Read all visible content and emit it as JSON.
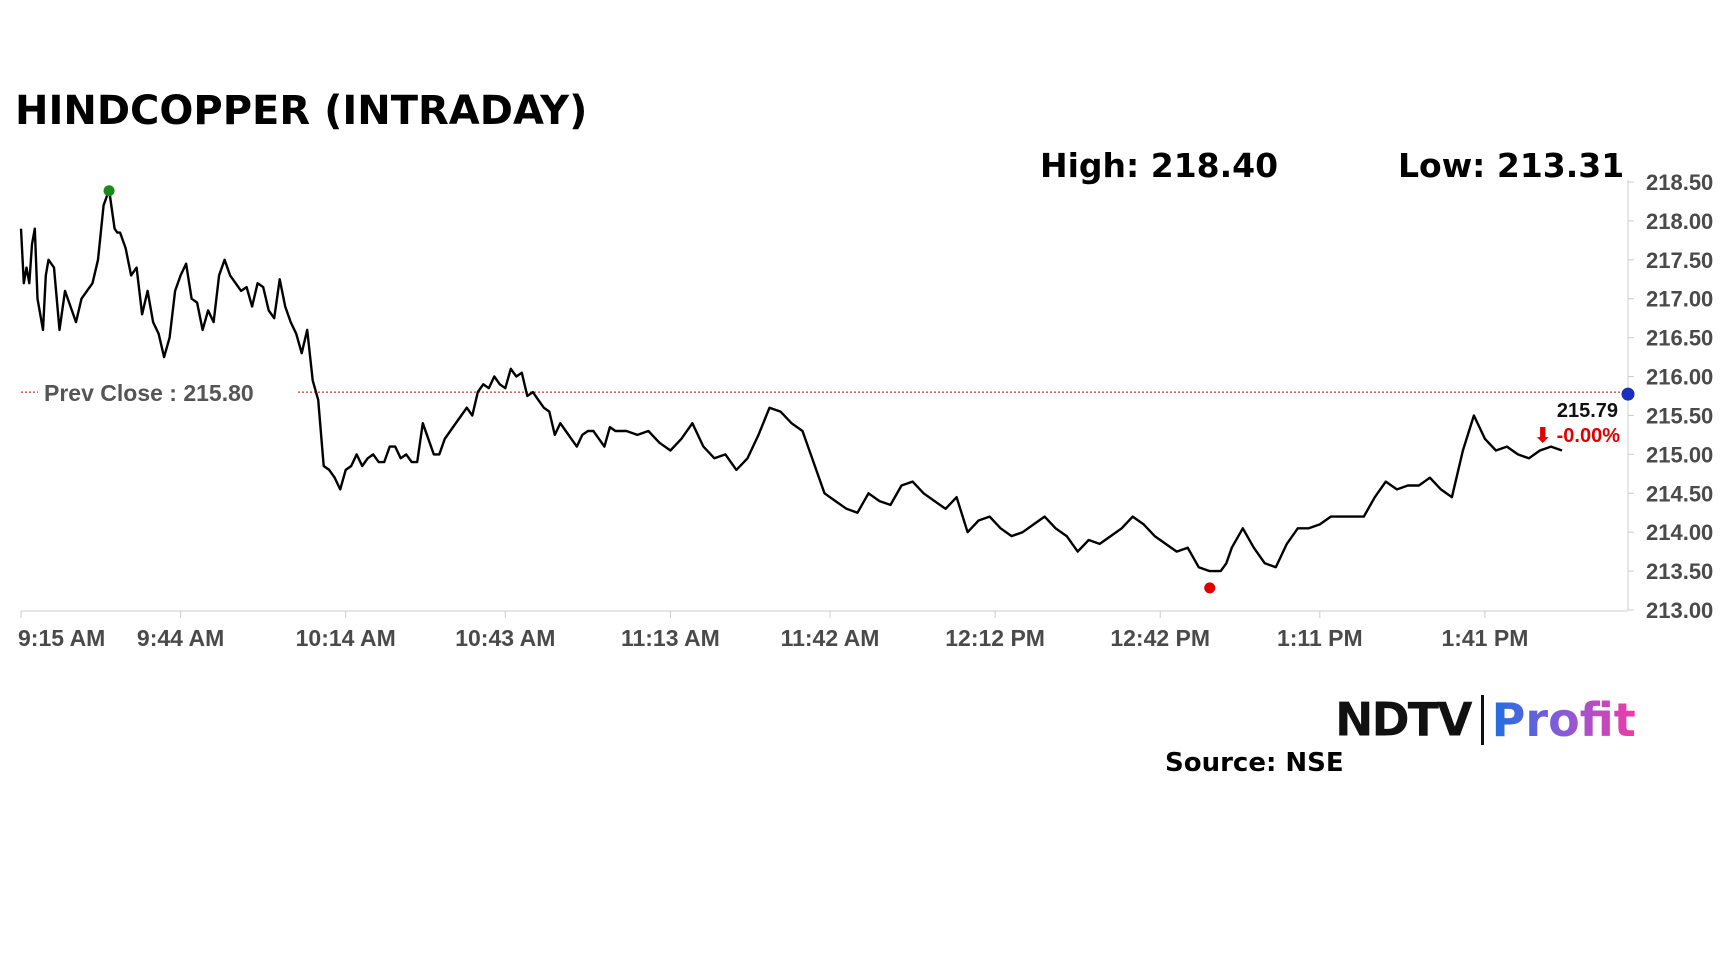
{
  "header": {
    "title": "HINDCOPPER (INTRADAY)",
    "high_label": "High: 218.40",
    "low_label": "Low: 213.31"
  },
  "footer": {
    "logo_primary": "NDTV",
    "logo_secondary": "Profit",
    "source": "Source: NSE"
  },
  "chart_data": {
    "type": "line",
    "title": "HINDCOPPER (INTRADAY)",
    "ylim": [
      213.0,
      218.5
    ],
    "yticks": [
      "218.50",
      "218.00",
      "217.50",
      "217.00",
      "216.50",
      "216.00",
      "215.50",
      "215.00",
      "214.50",
      "214.00",
      "213.50",
      "213.00"
    ],
    "yticks_values": [
      218.5,
      218.0,
      217.5,
      217.0,
      216.5,
      216.0,
      215.5,
      215.0,
      214.5,
      214.0,
      213.5,
      213.0
    ],
    "xticks": [
      "9:15 AM",
      "9:44 AM",
      "10:14 AM",
      "10:43 AM",
      "11:13 AM",
      "11:42 AM",
      "12:12 PM",
      "12:42 PM",
      "1:11 PM",
      "1:41 PM"
    ],
    "xticks_minutes": [
      0,
      29,
      59,
      88,
      118,
      147,
      177,
      207,
      236,
      266
    ],
    "x_range_minutes": [
      0,
      292
    ],
    "high": 218.4,
    "low": 213.31,
    "prev_close": 215.8,
    "prev_close_label": "Prev Close : 215.80",
    "last_price_label": "215.79",
    "change_label": "⬇ -0.00%",
    "colors": {
      "line": "#000000",
      "high_marker": "#1a8a1a",
      "low_marker": "#e00000",
      "last_marker": "#1a2fbf",
      "prev_close_line": "#c00000",
      "change": "#e00000",
      "axis": "#cccccc"
    },
    "series": [
      {
        "x": [
          0,
          0.5,
          1,
          1.5,
          2,
          2.5,
          3,
          4,
          4.5,
          5,
          6,
          7,
          8,
          9,
          10,
          11,
          12,
          13,
          14,
          15,
          16,
          17,
          17.5,
          18,
          19,
          20,
          21,
          22,
          23,
          24,
          25,
          26,
          27,
          28,
          29,
          30,
          31,
          32,
          33,
          34,
          35,
          36,
          37,
          38,
          39,
          40,
          41,
          42,
          43,
          44,
          45,
          46,
          47,
          48,
          49,
          50,
          51,
          52,
          53,
          54,
          55,
          56,
          57,
          58,
          59,
          60,
          61,
          62,
          63,
          64,
          65,
          66,
          67,
          68,
          69,
          70,
          71,
          72,
          73,
          74,
          75,
          76,
          77,
          78,
          79,
          80,
          81,
          82,
          83,
          84,
          85,
          86,
          87,
          88,
          89,
          90,
          91,
          92,
          93,
          94,
          95,
          96,
          97,
          98,
          99,
          100,
          101,
          102,
          103,
          104,
          105,
          106,
          107,
          108,
          110,
          112,
          114,
          116,
          118,
          120,
          122,
          124,
          126,
          128,
          130,
          132,
          134,
          136,
          138,
          140,
          142,
          144,
          146,
          148,
          150,
          152,
          154,
          156,
          158,
          160,
          162,
          164,
          166,
          168,
          170,
          172,
          174,
          176,
          178,
          180,
          182,
          184,
          186,
          188,
          190,
          192,
          194,
          196,
          198,
          200,
          202,
          204,
          206,
          208,
          210,
          212,
          214,
          216,
          218,
          219,
          220,
          222,
          224,
          226,
          228,
          230,
          232,
          234,
          236,
          238,
          240,
          242,
          244,
          246,
          248,
          250,
          252,
          254,
          256,
          258,
          260,
          262,
          264,
          266,
          268,
          270,
          272,
          274,
          276,
          278,
          280
        ],
        "values": [
          217.9,
          217.2,
          217.4,
          217.2,
          217.7,
          217.9,
          217.0,
          216.6,
          217.3,
          217.5,
          217.4,
          216.6,
          217.1,
          216.9,
          216.7,
          217.0,
          217.1,
          217.2,
          217.5,
          218.2,
          218.4,
          217.9,
          217.85,
          217.85,
          217.65,
          217.3,
          217.4,
          216.8,
          217.1,
          216.7,
          216.55,
          216.25,
          216.5,
          217.1,
          217.3,
          217.45,
          217.0,
          216.95,
          216.6,
          216.85,
          216.7,
          217.3,
          217.5,
          217.3,
          217.2,
          217.1,
          217.15,
          216.9,
          217.2,
          217.15,
          216.85,
          216.75,
          217.25,
          216.9,
          216.7,
          216.55,
          216.3,
          216.6,
          215.95,
          215.7,
          214.85,
          214.8,
          214.7,
          214.55,
          214.8,
          214.85,
          215.0,
          214.85,
          214.95,
          215.0,
          214.9,
          214.9,
          215.1,
          215.1,
          214.95,
          215.0,
          214.9,
          214.9,
          215.4,
          215.2,
          215.0,
          215.0,
          215.2,
          215.3,
          215.4,
          215.5,
          215.6,
          215.5,
          215.8,
          215.9,
          215.85,
          216.0,
          215.9,
          215.85,
          216.1,
          216.0,
          216.05,
          215.75,
          215.8,
          215.7,
          215.6,
          215.55,
          215.25,
          215.4,
          215.3,
          215.2,
          215.1,
          215.25,
          215.3,
          215.3,
          215.2,
          215.1,
          215.35,
          215.3,
          215.3,
          215.25,
          215.3,
          215.15,
          215.05,
          215.2,
          215.4,
          215.1,
          214.95,
          215.0,
          214.8,
          214.95,
          215.25,
          215.6,
          215.55,
          215.4,
          215.3,
          214.9,
          214.5,
          214.4,
          214.3,
          214.25,
          214.5,
          214.4,
          214.35,
          214.6,
          214.65,
          214.5,
          214.4,
          214.3,
          214.45,
          214.0,
          214.15,
          214.2,
          214.05,
          213.95,
          214.0,
          214.1,
          214.2,
          214.05,
          213.95,
          213.75,
          213.9,
          213.85,
          213.95,
          214.05,
          214.2,
          214.1,
          213.95,
          213.85,
          213.75,
          213.8,
          213.55,
          213.5,
          213.5,
          213.6,
          213.8,
          214.05,
          213.8,
          213.6,
          213.55,
          213.85,
          214.05,
          214.05,
          214.1,
          214.2,
          214.2,
          214.2,
          214.2,
          214.45,
          214.65,
          214.55,
          214.6,
          214.6,
          214.7,
          214.55,
          214.45,
          215.05,
          215.5,
          215.2,
          215.05,
          215.1,
          215.0,
          214.95,
          215.05,
          215.1,
          215.05
        ]
      }
    ]
  }
}
